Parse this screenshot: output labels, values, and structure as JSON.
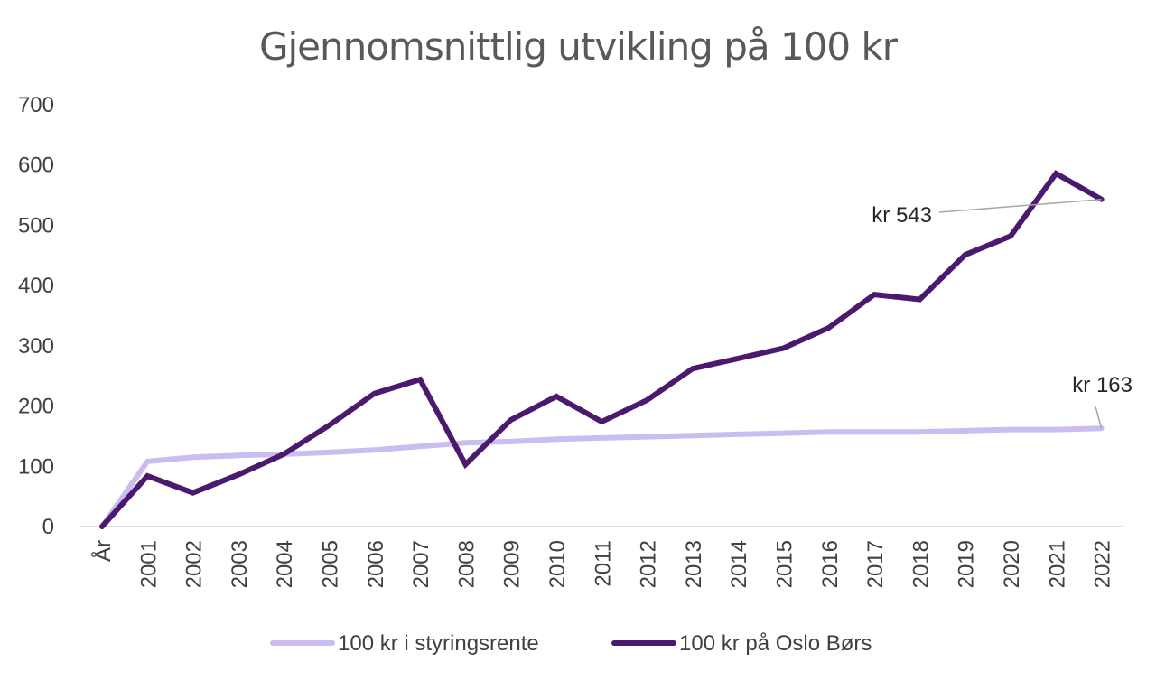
{
  "chart_data": {
    "type": "line",
    "title": "Gjennomsnittlig utvikling på 100 kr",
    "xlabel": "",
    "ylabel": "",
    "ylim": [
      0,
      700
    ],
    "yticks": [
      0,
      100,
      200,
      300,
      400,
      500,
      600,
      700
    ],
    "grid": false,
    "legend_position": "bottom",
    "categories": [
      "År",
      "2001",
      "2002",
      "2003",
      "2004",
      "2005",
      "2006",
      "2007",
      "2008",
      "2009",
      "2010",
      "2011",
      "2012",
      "2013",
      "2014",
      "2015",
      "2016",
      "2017",
      "2018",
      "2019",
      "2020",
      "2021",
      "2022"
    ],
    "series": [
      {
        "name": "100 kr i styringsrente",
        "color": "#cbbdf2",
        "values": [
          0,
          108,
          115,
          118,
          120,
          123,
          127,
          133,
          139,
          141,
          145,
          147,
          149,
          151,
          153,
          155,
          157,
          157,
          157,
          159,
          161,
          161,
          163
        ]
      },
      {
        "name": "100 kr på Oslo Børs",
        "color": "#4b1a6e",
        "values": [
          0,
          84,
          56,
          86,
          120,
          168,
          221,
          244,
          103,
          177,
          216,
          174,
          210,
          262,
          279,
          296,
          330,
          385,
          377,
          451,
          482,
          586,
          543
        ]
      }
    ],
    "annotations": [
      {
        "series": "100 kr på Oslo Børs",
        "category": "2022",
        "text": "kr 543"
      },
      {
        "series": "100 kr i styringsrente",
        "category": "2022",
        "text": "kr 163"
      }
    ]
  }
}
